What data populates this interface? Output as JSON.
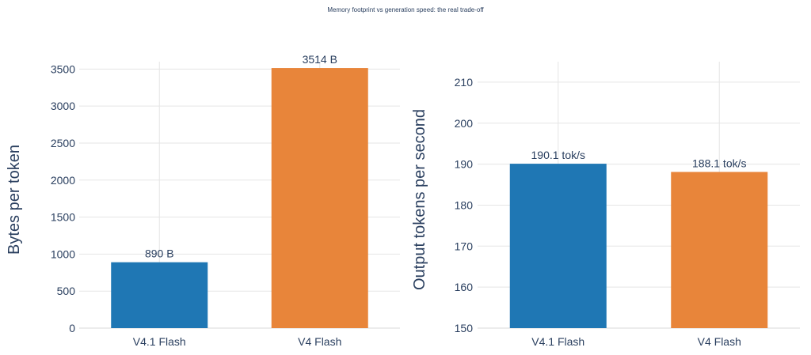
{
  "figure_title": "Memory footprint vs generation speed: the real trade-off",
  "colors": {
    "blue": "#1f77b4",
    "orange": "#e8853a",
    "text": "#2a3f5f",
    "grid": "#e5e5e5"
  },
  "chart_data": [
    {
      "type": "bar",
      "categories": [
        "V4.1 Flash",
        "V4 Flash"
      ],
      "values": [
        890,
        3514
      ],
      "data_labels": [
        "890 B",
        "3514 B"
      ],
      "bar_colors": [
        "#1f77b4",
        "#e8853a"
      ],
      "ylabel": "Bytes per token",
      "ylim": [
        0,
        3600
      ],
      "yticks": [
        0,
        500,
        1000,
        1500,
        2000,
        2500,
        3000,
        3500
      ],
      "ytick_labels": [
        "0",
        "500",
        "1000",
        "1500",
        "2000",
        "2500",
        "3000",
        "3500"
      ],
      "grid": true
    },
    {
      "type": "bar",
      "categories": [
        "V4.1 Flash",
        "V4 Flash"
      ],
      "values": [
        190.1,
        188.1
      ],
      "data_labels": [
        "190.1 tok/s",
        "188.1 tok/s"
      ],
      "bar_colors": [
        "#1f77b4",
        "#e8853a"
      ],
      "ylabel": "Output tokens per second",
      "ylim": [
        150,
        215
      ],
      "yticks": [
        150,
        160,
        170,
        180,
        190,
        200,
        210
      ],
      "ytick_labels": [
        "150",
        "160",
        "170",
        "180",
        "190",
        "200",
        "210"
      ],
      "grid": true
    }
  ]
}
